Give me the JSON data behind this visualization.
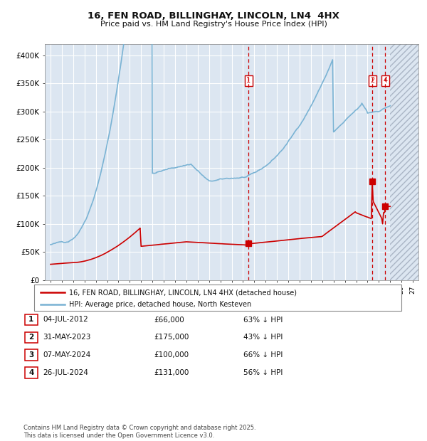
{
  "title": "16, FEN ROAD, BILLINGHAY, LINCOLN, LN4  4HX",
  "subtitle": "Price paid vs. HM Land Registry's House Price Index (HPI)",
  "background_color": "#ffffff",
  "plot_bg_color": "#dce6f1",
  "grid_color": "#ffffff",
  "hpi_color": "#7ab3d4",
  "price_color": "#cc0000",
  "vline_color": "#cc0000",
  "ylim": [
    0,
    420000
  ],
  "yticks": [
    0,
    50000,
    100000,
    150000,
    200000,
    250000,
    300000,
    350000,
    400000
  ],
  "ytick_labels": [
    "£0",
    "£50K",
    "£100K",
    "£150K",
    "£200K",
    "£250K",
    "£300K",
    "£350K",
    "£400K"
  ],
  "xlim_start": 1994.5,
  "xlim_end": 2027.5,
  "hatch_start": 2025.0,
  "transactions": [
    {
      "label": "1",
      "date": 2012.5,
      "price": 66000
    },
    {
      "label": "2",
      "date": 2023.42,
      "price": 175000
    },
    {
      "label": "4",
      "date": 2024.57,
      "price": 131000
    }
  ],
  "vlines": [
    2012.5,
    2023.42,
    2024.57
  ],
  "table_rows": [
    [
      "1",
      "04-JUL-2012",
      "£66,000",
      "63% ↓ HPI"
    ],
    [
      "2",
      "31-MAY-2023",
      "£175,000",
      "43% ↓ HPI"
    ],
    [
      "3",
      "07-MAY-2024",
      "£100,000",
      "66% ↓ HPI"
    ],
    [
      "4",
      "26-JUL-2024",
      "£131,000",
      "56% ↓ HPI"
    ]
  ],
  "footer": "Contains HM Land Registry data © Crown copyright and database right 2025.\nThis data is licensed under the Open Government Licence v3.0.",
  "legend_entries": [
    "16, FEN ROAD, BILLINGHAY, LINCOLN, LN4 4HX (detached house)",
    "HPI: Average price, detached house, North Kesteven"
  ]
}
